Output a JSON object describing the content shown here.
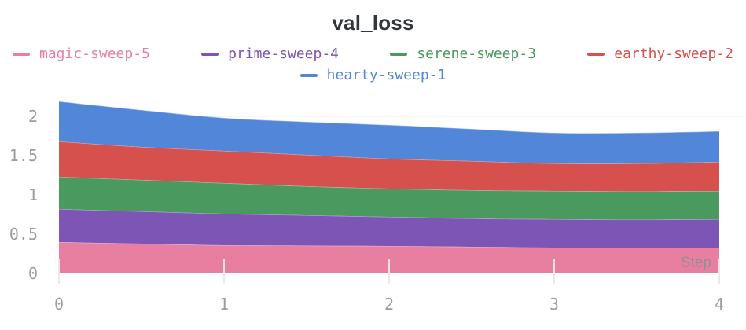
{
  "title": "val_loss",
  "legend": {
    "rows": [
      [
        {
          "label": "magic-sweep-5",
          "color": "#E87FA0"
        },
        {
          "label": "prime-sweep-4",
          "color": "#7D55B4"
        },
        {
          "label": "serene-sweep-3",
          "color": "#4A9A60"
        },
        {
          "label": "earthy-sweep-2",
          "color": "#D6504E"
        }
      ],
      [
        {
          "label": "hearty-sweep-1",
          "color": "#5286D9"
        }
      ]
    ]
  },
  "chart_data": {
    "type": "area",
    "stacked": true,
    "stack_order": "bottom-to-top as listed in series",
    "title": "val_loss",
    "xlabel": "Step",
    "ylabel": "",
    "x": [
      0,
      0.5,
      1,
      1.5,
      2,
      2.5,
      3,
      3.5,
      4
    ],
    "series": [
      {
        "name": "magic-sweep-5",
        "color": "#E87FA0",
        "values": [
          0.4,
          0.38,
          0.36,
          0.355,
          0.35,
          0.34,
          0.33,
          0.33,
          0.33
        ]
      },
      {
        "name": "prime-sweep-4",
        "color": "#7D55B4",
        "values": [
          0.42,
          0.41,
          0.4,
          0.385,
          0.37,
          0.36,
          0.36,
          0.355,
          0.36
        ]
      },
      {
        "name": "serene-sweep-3",
        "color": "#4A9A60",
        "values": [
          0.41,
          0.4,
          0.39,
          0.37,
          0.36,
          0.36,
          0.36,
          0.36,
          0.36
        ]
      },
      {
        "name": "earthy-sweep-2",
        "color": "#D6504E",
        "values": [
          0.45,
          0.42,
          0.41,
          0.4,
          0.38,
          0.37,
          0.35,
          0.355,
          0.37
        ]
      },
      {
        "name": "hearty-sweep-1",
        "color": "#5286D9",
        "values": [
          0.51,
          0.47,
          0.42,
          0.42,
          0.43,
          0.41,
          0.39,
          0.39,
          0.39
        ]
      }
    ],
    "stacked_totals": [
      2.19,
      2.08,
      1.98,
      1.93,
      1.89,
      1.84,
      1.79,
      1.79,
      1.81
    ],
    "x_ticks": [
      "0",
      "1",
      "2",
      "3",
      "4"
    ],
    "y_ticks": [
      "0",
      "0.5",
      "1",
      "1.5",
      "2"
    ],
    "xlim": [
      0,
      4
    ],
    "ylim": [
      0,
      2.3
    ],
    "legend_position": "top, two centered rows",
    "grid": "single horizontal gridline visible at y=2",
    "colors": {
      "axis_label": "#9B9BA1",
      "step_label": "#8F8F96",
      "gridline": "#EDEDEE",
      "tick_line": "#E9E9EC",
      "title": "#33373D",
      "background": "#FFFFFF"
    }
  }
}
